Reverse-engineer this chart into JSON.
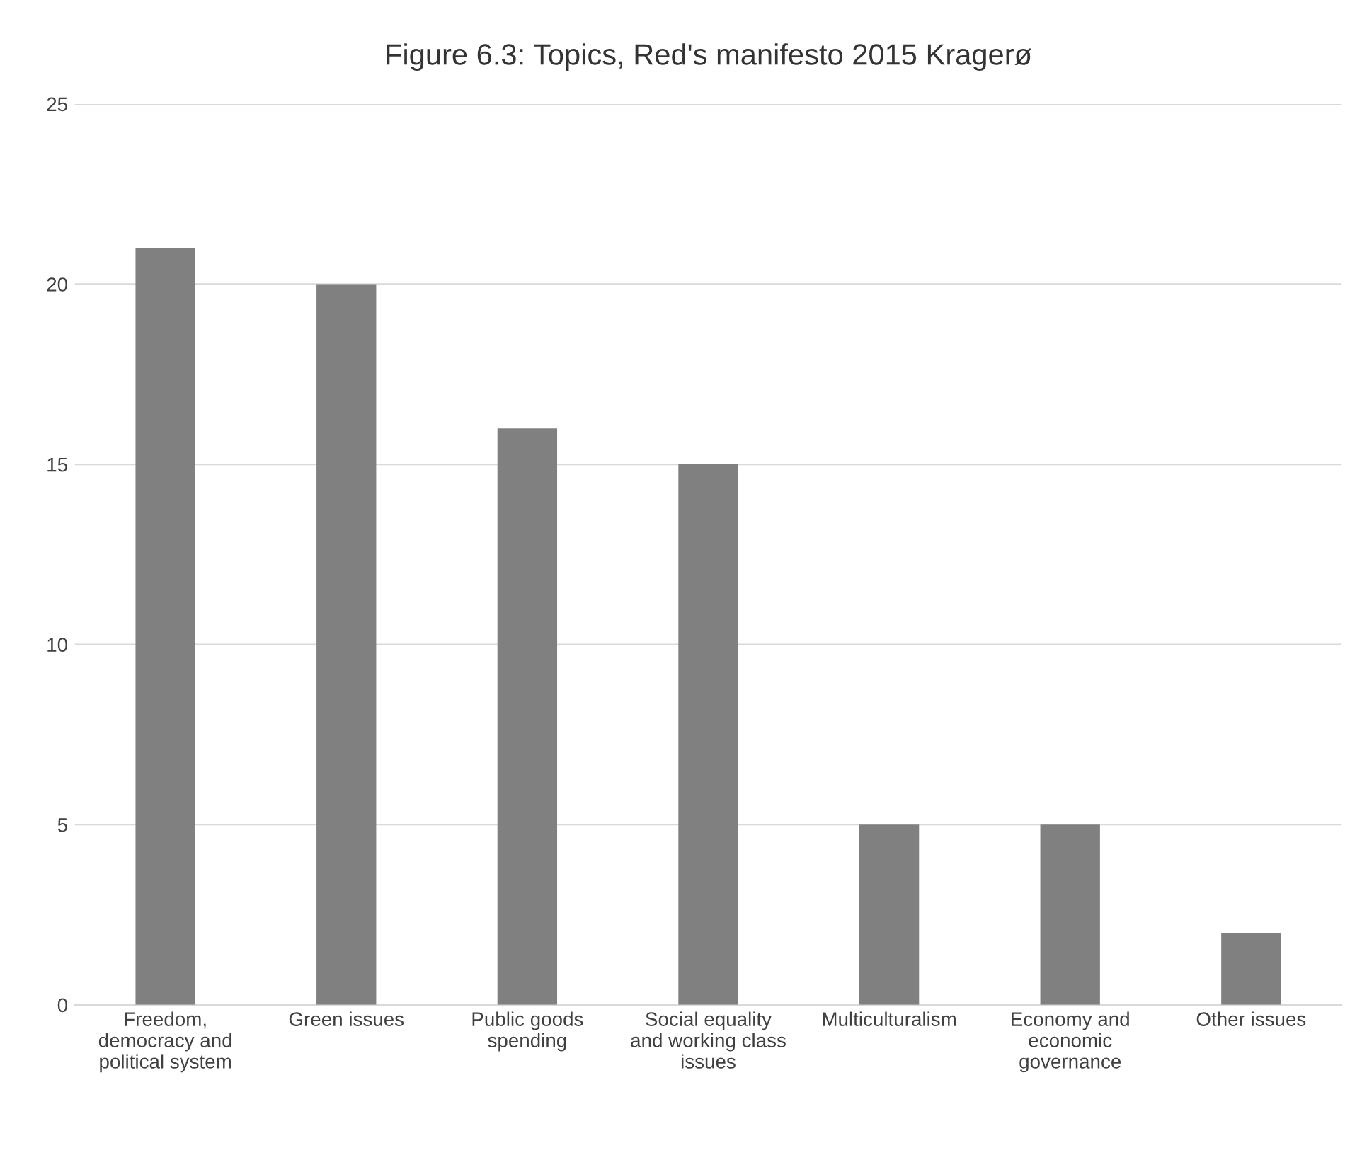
{
  "chart_data": {
    "type": "bar",
    "title": "Figure 6.3: Topics, Red's manifesto 2015 Kragerø",
    "categories": [
      "Freedom,\ndemocracy and\npolitical system",
      "Green issues",
      "Public goods\nspending",
      "Social equality\nand working class\nissues",
      "Multiculturalism",
      "Economy and\neconomic\ngovernance",
      "Other issues"
    ],
    "values": [
      21,
      20,
      16,
      15,
      5,
      5,
      2
    ],
    "color": "#808080",
    "ylim": [
      0,
      25
    ],
    "yticks": [
      0,
      5,
      10,
      15,
      20,
      25
    ],
    "grid": "y"
  }
}
